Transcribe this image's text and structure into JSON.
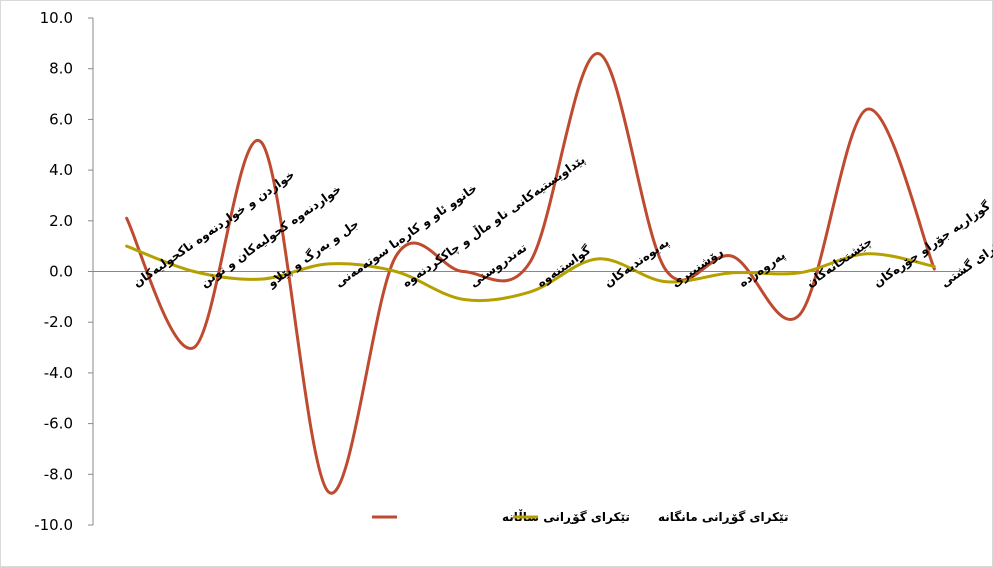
{
  "chart_data": {
    "type": "line",
    "title": "",
    "xlabel": "",
    "ylabel": "",
    "ylim": [
      -10,
      10
    ],
    "ytick_step": 2,
    "categories": [
      "خواردن و خواردنەوە ناکحولیەکان",
      "خواردنەوە کحولیەکان و توتن",
      "جل و بەرگ و پێلاو",
      "خانوو ئاو و کارەبا سوتەمەنی",
      "پێداویستیەکانی ناو ماڵ و چاککردنەوە",
      "تەندروستی",
      "گواستنەوە",
      "پەیوەندیەکان",
      "رۆشنبیری",
      "پەروەردە",
      "چێشتخانەکان",
      "کەرستەو خزمەت گوزاریە جۆراو جۆرەکان",
      "تێکرای گشتی"
    ],
    "series": [
      {
        "name": "تێکرای گۆڕانی ساڵانە",
        "color": "#be4b2f",
        "values": [
          2.1,
          -3.0,
          5.1,
          -8.7,
          0.6,
          0.0,
          0.4,
          8.6,
          0.1,
          0.6,
          -1.7,
          6.4,
          0.1
        ]
      },
      {
        "name": "تێکرای گۆڕانی مانگانە",
        "color": "#b5a000",
        "values": [
          1.0,
          0.0,
          -0.3,
          0.3,
          0.0,
          -1.1,
          -0.8,
          0.5,
          -0.4,
          -0.05,
          -0.05,
          0.7,
          0.2
        ]
      }
    ],
    "legend_position": "bottom",
    "grid": false
  }
}
